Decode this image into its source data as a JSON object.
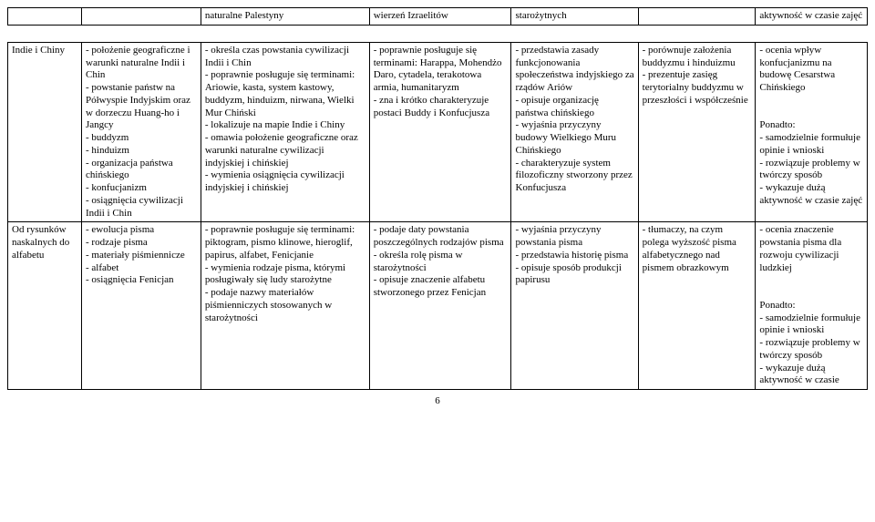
{
  "page_number": "6",
  "top_row": {
    "c0": "",
    "c1": "",
    "c2": "naturalne Palestyny",
    "c3": "wierzeń Izraelitów",
    "c4": "starożytnych",
    "c5": "",
    "c6": "aktywność w czasie zajęć"
  },
  "rows": [
    {
      "c0": "Indie i Chiny",
      "c1": "- położenie geograficzne i warunki naturalne Indii i Chin\n- powstanie państw na Półwyspie Indyjskim oraz w dorzeczu Huang-ho i Jangcy\n- buddyzm\n- hinduizm\n- organizacja państwa chińskiego\n- konfucjanizm\n- osiągnięcia cywilizacji Indii i Chin",
      "c2": "- określa czas powstania cywilizacji Indii i Chin\n- poprawnie posługuje się terminami: Ariowie, kasta, system kastowy, buddyzm, hinduizm, nirwana, Wielki Mur Chiński\n- lokalizuje na mapie Indie i Chiny\n- omawia położenie geograficzne oraz warunki naturalne cywilizacji indyjskiej i chińskiej\n- wymienia osiągnięcia cywilizacji indyjskiej i chińskiej",
      "c3": "- poprawnie posługuje się terminami: Harappa, Mohendżo Daro, cytadela, terakotowa armia, humanitaryzm\n- zna i krótko charakteryzuje postaci Buddy i Konfucjusza",
      "c4": "- przedstawia zasady funkcjonowania społeczeństwa indyjskiego za rządów Ariów\n- opisuje organizację państwa chińskiego\n- wyjaśnia przyczyny budowy Wielkiego Muru Chińskiego\n- charakteryzuje system filozoficzny stworzony przez Konfucjusza",
      "c5": "- porównuje założenia buddyzmu i hinduizmu\n- prezentuje zasięg terytorialny buddyzmu w przeszłości i współcześnie",
      "c6": "- ocenia wpływ konfucjanizmu na budowę Cesarstwa Chińskiego\n\nPonadto:\n- samodzielnie formułuje opinie i wnioski\n- rozwiązuje problemy w twórczy sposób\n- wykazuje dużą aktywność w czasie zajęć"
    },
    {
      "c0": "Od rysunków naskalnych do alfabetu",
      "c1": "- ewolucja pisma\n- rodzaje pisma\n- materiały piśmiennicze\n- alfabet\n- osiągnięcia Fenicjan",
      "c2": "- poprawnie posługuje się terminami: piktogram, pismo klinowe, hieroglif, papirus, alfabet, Fenicjanie\n- wymienia rodzaje pisma, którymi posługiwały się ludy starożytne\n- podaje nazwy materiałów piśmienniczych stosowanych w starożytności",
      "c3": "- podaje daty powstania poszczególnych rodzajów pisma\n- określa rolę pisma w starożytności\n- opisuje znaczenie alfabetu stworzonego przez Fenicjan",
      "c4": "- wyjaśnia przyczyny powstania pisma\n- przedstawia historię pisma\n- opisuje sposób produkcji papirusu",
      "c5": "- tłumaczy, na czym polega wyższość pisma alfabetycznego nad pismem obrazkowym",
      "c6": "- ocenia znaczenie powstania pisma dla rozwoju cywilizacji ludzkiej\n\nPonadto:\n- samodzielnie formułuje opinie i wnioski\n- rozwiązuje problemy w twórczy sposób\n- wykazuje dużą aktywność w czasie"
    }
  ]
}
